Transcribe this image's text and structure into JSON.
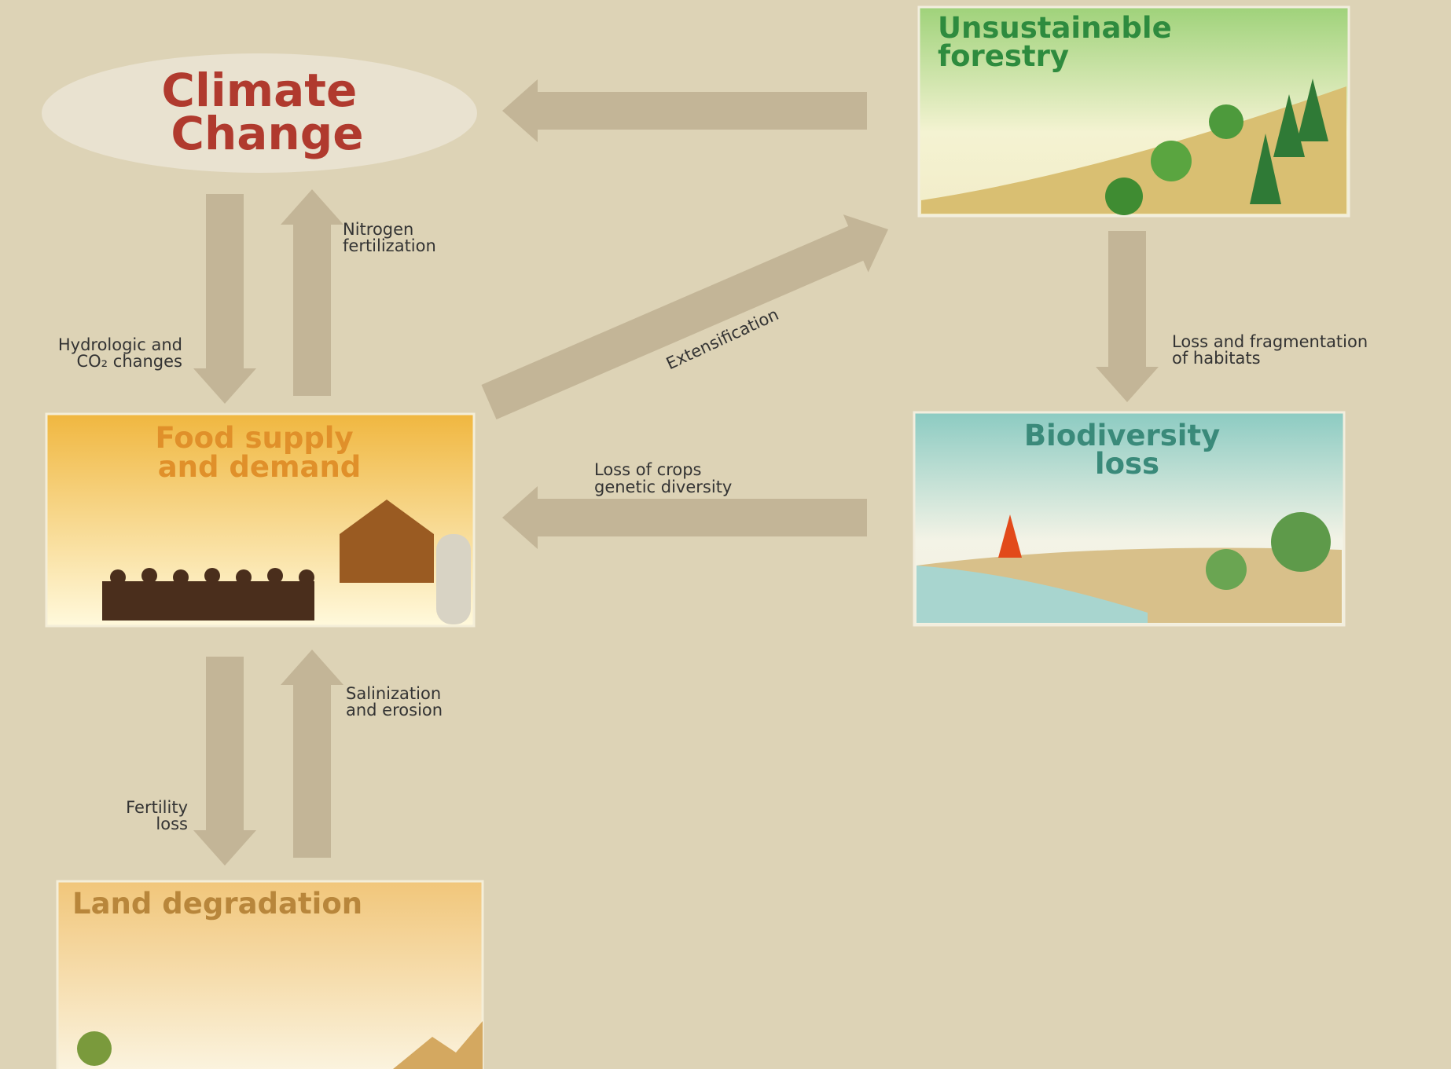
{
  "nodes": [
    {
      "label": [
        "Climate",
        "Change"
      ]
    },
    {
      "label": [
        "Unsustainable",
        "forestry"
      ]
    },
    {
      "label": [
        "Food supply",
        "and demand"
      ]
    },
    {
      "label": [
        "Biodiversity",
        "loss"
      ]
    },
    {
      "label": [
        "Land degradation"
      ]
    }
  ],
  "edges": [
    {
      "label": [
        "Nitrogen",
        "fertilization"
      ]
    },
    {
      "label": [
        "Hydrologic and",
        "CO₂ changes"
      ]
    },
    {
      "label": [
        "Extensification"
      ]
    },
    {
      "label": [
        "Loss and fragmentation",
        "of habitats"
      ]
    },
    {
      "label": [
        "Loss of crops",
        "genetic diversity"
      ]
    },
    {
      "label": [
        "Salinization",
        "and erosion"
      ]
    },
    {
      "label": [
        "Fertility",
        "loss"
      ]
    }
  ]
}
